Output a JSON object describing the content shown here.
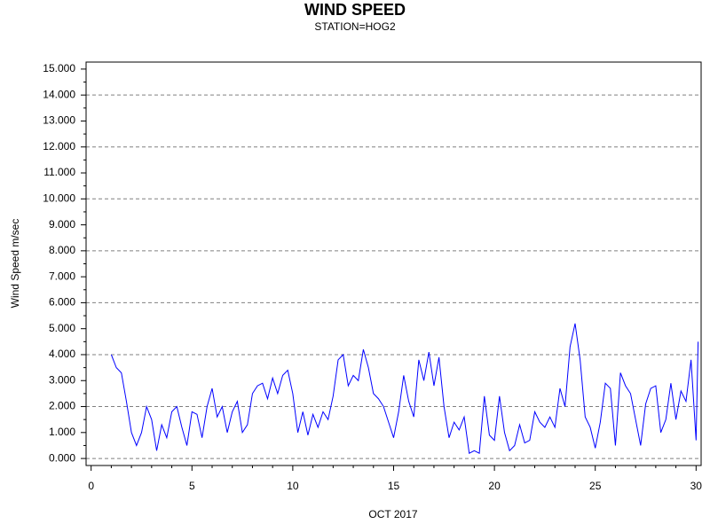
{
  "chart_data": {
    "type": "line",
    "title": "WIND SPEED",
    "subtitle": "STATION=HOG2",
    "x_label": "OCT 2017",
    "y_label": "Wind Speed m/sec",
    "xlim": [
      -0.25,
      30.25
    ],
    "xticks": [
      0,
      5,
      10,
      15,
      20,
      25,
      30
    ],
    "xminorticks": [
      1,
      2,
      3,
      4,
      6,
      7,
      8,
      9,
      11,
      12,
      13,
      14,
      16,
      17,
      18,
      19,
      21,
      22,
      23,
      24,
      26,
      27,
      28,
      29
    ],
    "ylim": [
      -0.27,
      15.27
    ],
    "yticks": [
      {
        "value": 0,
        "label": "0.000"
      },
      {
        "value": 1,
        "label": "1.000"
      },
      {
        "value": 2,
        "label": "2.000"
      },
      {
        "value": 3,
        "label": "3.000"
      },
      {
        "value": 4,
        "label": "4.000"
      },
      {
        "value": 5,
        "label": "5.000"
      },
      {
        "value": 6,
        "label": "6.000"
      },
      {
        "value": 7,
        "label": "7.000"
      },
      {
        "value": 8,
        "label": "8.000"
      },
      {
        "value": 9,
        "label": "9.000"
      },
      {
        "value": 10,
        "label": "10.000"
      },
      {
        "value": 11,
        "label": "11.000"
      },
      {
        "value": 12,
        "label": "12.000"
      },
      {
        "value": 13,
        "label": "13.000"
      },
      {
        "value": 14,
        "label": "14.000"
      },
      {
        "value": 15,
        "label": "15.000"
      }
    ],
    "yminorticks": [
      0.5,
      1.5,
      2.5,
      3.5,
      4.5,
      5.5,
      6.5,
      7.5,
      8.5,
      9.5,
      10.5,
      11.5,
      12.5,
      13.5,
      14.5
    ],
    "ygrid": [
      0,
      2,
      4,
      6,
      8,
      10,
      12,
      14
    ],
    "grid_color": "#808080",
    "x": [
      1,
      1.25,
      1.5,
      1.75,
      2,
      2.25,
      2.5,
      2.75,
      3,
      3.25,
      3.5,
      3.75,
      4,
      4.25,
      4.5,
      4.75,
      5,
      5.25,
      5.5,
      5.75,
      6,
      6.25,
      6.5,
      6.75,
      7,
      7.25,
      7.5,
      7.75,
      8,
      8.25,
      8.5,
      8.75,
      9,
      9.25,
      9.5,
      9.75,
      10,
      10.25,
      10.5,
      10.75,
      11,
      11.25,
      11.5,
      11.75,
      12,
      12.25,
      12.5,
      12.75,
      13,
      13.25,
      13.5,
      13.75,
      14,
      14.25,
      14.5,
      14.75,
      15,
      15.25,
      15.5,
      15.75,
      16,
      16.25,
      16.5,
      16.75,
      17,
      17.25,
      17.5,
      17.75,
      18,
      18.25,
      18.5,
      18.75,
      19,
      19.25,
      19.5,
      19.75,
      20,
      20.25,
      20.5,
      20.75,
      21,
      21.25,
      21.5,
      21.75,
      22,
      22.25,
      22.5,
      22.75,
      23,
      23.25,
      23.5,
      23.75,
      24,
      24.25,
      24.5,
      24.75,
      25,
      25.25,
      25.5,
      25.75,
      26,
      26.25,
      26.5,
      26.75,
      27,
      27.25,
      27.5,
      27.75,
      28,
      28.25,
      28.5,
      28.75,
      29,
      29.25,
      29.5,
      29.75,
      30,
      30.1
    ],
    "series": [
      {
        "color": "#0000ff",
        "values": [
          4.0,
          3.5,
          3.3,
          2.2,
          1.0,
          0.5,
          1.0,
          2.0,
          1.5,
          0.3,
          1.3,
          0.8,
          1.8,
          2.0,
          1.2,
          0.5,
          1.8,
          1.7,
          0.8,
          2.0,
          2.7,
          1.6,
          2.0,
          1.0,
          1.8,
          2.2,
          1.0,
          1.3,
          2.5,
          2.8,
          2.9,
          2.3,
          3.1,
          2.5,
          3.2,
          3.4,
          2.5,
          1.0,
          1.8,
          0.9,
          1.7,
          1.2,
          1.8,
          1.5,
          2.4,
          3.8,
          4.0,
          2.8,
          3.2,
          3.0,
          4.2,
          3.5,
          2.5,
          2.3,
          2.0,
          1.4,
          0.8,
          1.8,
          3.2,
          2.2,
          1.6,
          3.8,
          3.0,
          4.1,
          2.8,
          3.9,
          2.0,
          0.8,
          1.4,
          1.1,
          1.6,
          0.2,
          0.3,
          0.2,
          2.4,
          0.9,
          0.7,
          2.4,
          1.0,
          0.3,
          0.5,
          1.3,
          0.6,
          0.7,
          1.8,
          1.4,
          1.2,
          1.6,
          1.2,
          2.7,
          2.0,
          4.3,
          5.2,
          3.8,
          1.6,
          1.2,
          0.4,
          1.4,
          2.9,
          2.7,
          0.5,
          3.3,
          2.8,
          2.5,
          1.5,
          0.5,
          2.1,
          2.7,
          2.8,
          1.0,
          1.5,
          2.9,
          1.5,
          2.6,
          2.2,
          3.8,
          0.7,
          4.5
        ]
      }
    ]
  }
}
